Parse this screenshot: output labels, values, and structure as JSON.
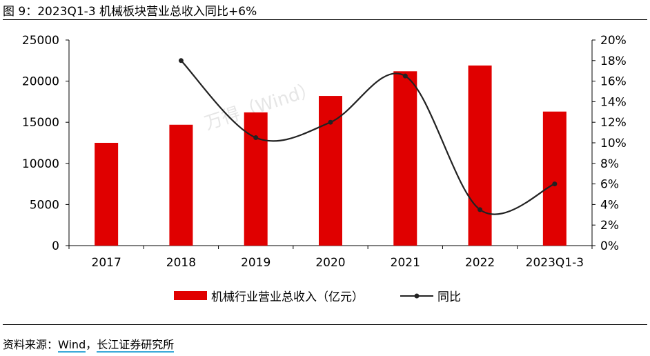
{
  "title": "图 9：2023Q1-3 机械板块营业总收入同比+6%",
  "source": {
    "prefix": "资料来源：",
    "wind": "Wind",
    "sep": "，",
    "org": "长江证券研究所"
  },
  "watermark": "万得（Wind）",
  "colors": {
    "bar": "#e00000",
    "line": "#222222"
  },
  "chart_data": {
    "type": "bar",
    "title": "2023Q1-3 机械板块营业总收入同比+6%",
    "categories": [
      "2017",
      "2018",
      "2019",
      "2020",
      "2021",
      "2022",
      "2023Q1-3"
    ],
    "series": [
      {
        "name": "机械行业营业总收入（亿元）",
        "type": "bar",
        "axis": "left",
        "values": [
          12500,
          14700,
          16200,
          18200,
          21200,
          21900,
          16300
        ]
      },
      {
        "name": "同比",
        "type": "line",
        "axis": "right",
        "values": [
          null,
          18.0,
          10.5,
          12.0,
          16.5,
          3.5,
          6.0
        ]
      }
    ],
    "yleft": {
      "min": 0,
      "max": 25000,
      "ticks": [
        "0",
        "5000",
        "10000",
        "15000",
        "20000",
        "25000"
      ]
    },
    "yright": {
      "min": 0,
      "max": 20,
      "ticks": [
        "0%",
        "2%",
        "4%",
        "6%",
        "8%",
        "10%",
        "12%",
        "14%",
        "16%",
        "18%",
        "20%"
      ]
    },
    "legend": [
      "机械行业营业总收入（亿元）",
      "同比"
    ]
  }
}
